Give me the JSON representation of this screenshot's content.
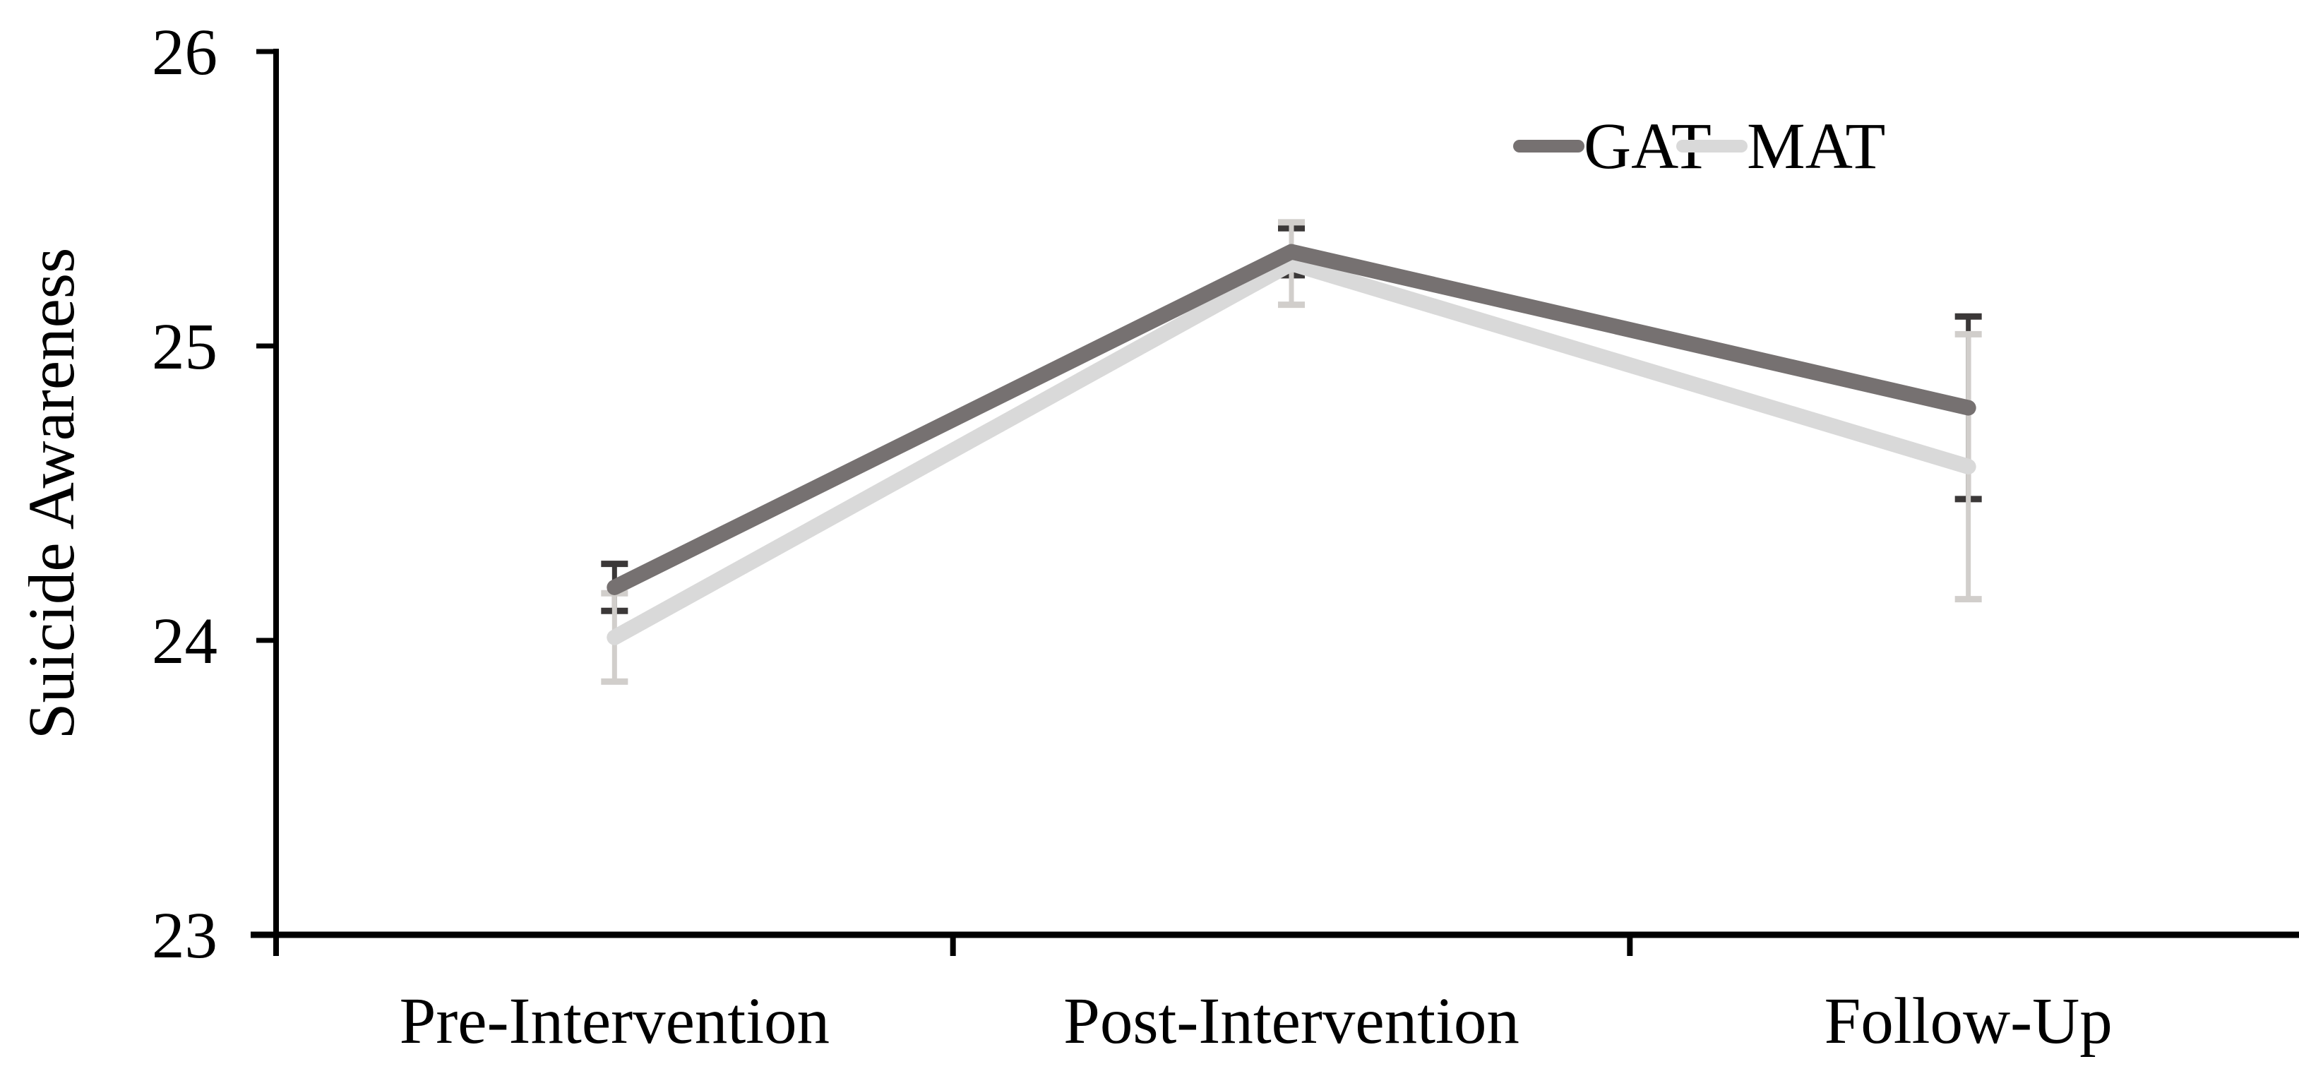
{
  "chart_data": {
    "type": "line",
    "title": "",
    "xlabel": "",
    "ylabel": "Suicide Awareness",
    "categories": [
      "Pre-Intervention",
      "Post-Intervention",
      "Follow-Up"
    ],
    "y_axis": {
      "min": 23,
      "max": 26,
      "tick_step": 1,
      "ticks": [
        26,
        25,
        24,
        23
      ],
      "tick_labels": [
        "26",
        "25",
        "24",
        "23"
      ]
    },
    "series": [
      {
        "name": "GAT",
        "color": "#767171",
        "error_color": "#3b3838",
        "values": [
          24.18,
          25.32,
          24.79
        ],
        "error": [
          0.08,
          0.08,
          0.31
        ]
      },
      {
        "name": "MAT",
        "color": "#d9d9d9",
        "error_color": "#d1cecb",
        "values": [
          24.01,
          25.28,
          24.59
        ],
        "error": [
          0.15,
          0.14,
          0.45
        ]
      }
    ],
    "legend": {
      "position": "top-right",
      "entries": [
        "GAT",
        "MAT"
      ]
    },
    "grid": false,
    "error_bars": true,
    "marker": "none",
    "background": "#ffffff",
    "axis_color": "#000000"
  }
}
